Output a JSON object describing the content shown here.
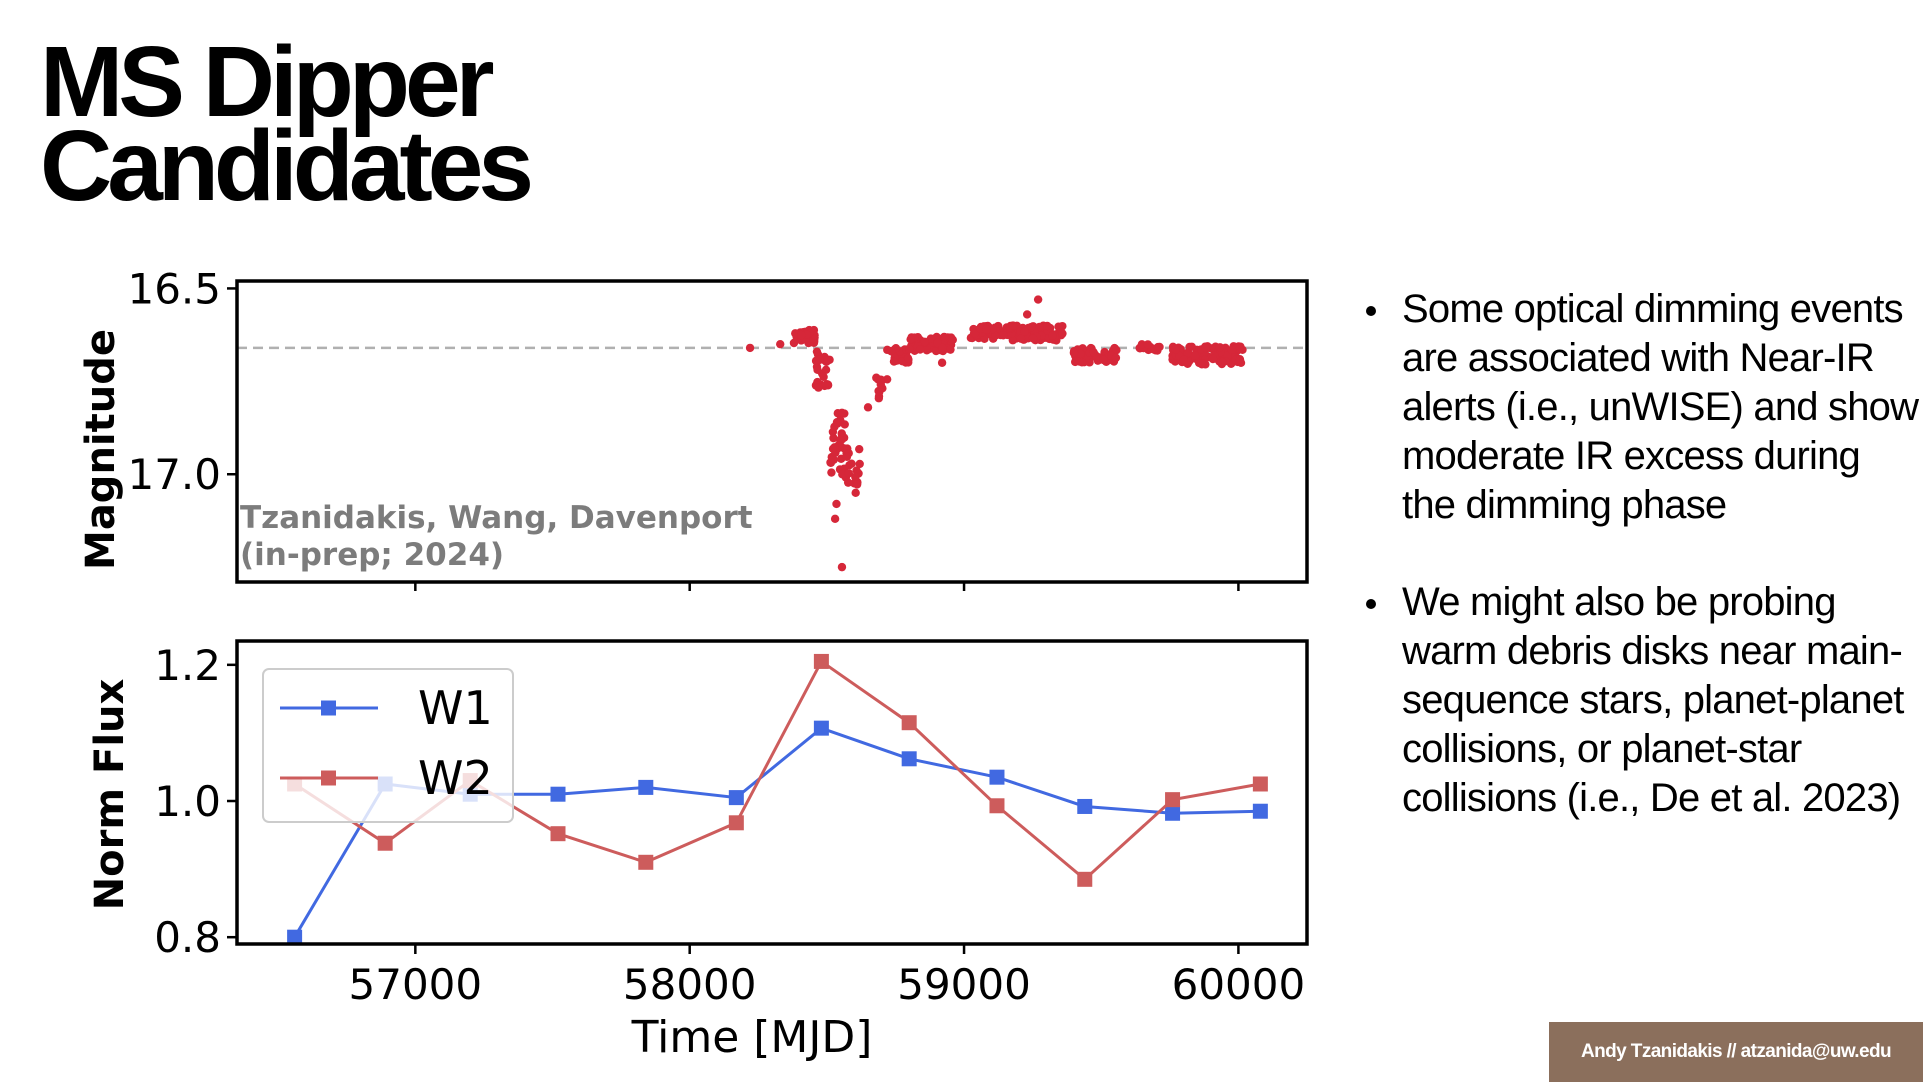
{
  "title": {
    "line1": "MS Dipper",
    "line2": "Candidates"
  },
  "bullets": [
    "Some optical dimming events are associated with Near-IR alerts (i.e., unWISE) and show moderate IR excess during the dimming phase",
    "We might also be probing warm debris disks near main-sequence stars, planet-planet collisions, or planet-star collisions (i.e., De et al.  2023)"
  ],
  "footer": "Andy Tzanidakis // atzanida@uw.edu",
  "colors": {
    "optical": "#d62739",
    "w1": "#4169e1",
    "w2": "#cd5c5c",
    "reference": "#b0b0b0",
    "footer_bg": "#8b6f5c"
  },
  "chart_data": [
    {
      "type": "scatter",
      "title": "",
      "ylabel": "Magnitude",
      "xlabel": "",
      "xlim": [
        56350,
        60250
      ],
      "ylim": [
        17.29,
        16.48
      ],
      "y_inverted": true,
      "yticks": [
        16.5,
        17.0
      ],
      "ytick_labels": [
        "16.5",
        "17.0"
      ],
      "xticks": [
        57000,
        58000,
        59000,
        60000
      ],
      "reference_line": 16.66,
      "annotation": [
        "Tzanidakis, Wang, Davenport",
        "(in-prep; 2024)"
      ],
      "segments": [
        {
          "x0": 58380,
          "x1": 58460,
          "base": 16.63,
          "amp": 0.02,
          "n": 40
        },
        {
          "x0": 58460,
          "x1": 58510,
          "base": 16.72,
          "amp": 0.05,
          "n": 25
        },
        {
          "x0": 58510,
          "x1": 58570,
          "base": 16.92,
          "amp": 0.09,
          "n": 35
        },
        {
          "x0": 58570,
          "x1": 58620,
          "base": 16.98,
          "amp": 0.05,
          "n": 18
        },
        {
          "x0": 58680,
          "x1": 58720,
          "base": 16.77,
          "amp": 0.03,
          "n": 10
        },
        {
          "x0": 58720,
          "x1": 58800,
          "base": 16.68,
          "amp": 0.02,
          "n": 35
        },
        {
          "x0": 58800,
          "x1": 58960,
          "base": 16.65,
          "amp": 0.02,
          "n": 60
        },
        {
          "x0": 59020,
          "x1": 59360,
          "base": 16.62,
          "amp": 0.02,
          "n": 140
        },
        {
          "x0": 59400,
          "x1": 59560,
          "base": 16.68,
          "amp": 0.02,
          "n": 60
        },
        {
          "x0": 59640,
          "x1": 59720,
          "base": 16.66,
          "amp": 0.01,
          "n": 15
        },
        {
          "x0": 59760,
          "x1": 60020,
          "base": 16.68,
          "amp": 0.025,
          "n": 110
        }
      ],
      "points": [
        {
          "x": 58220,
          "y": 16.66
        },
        {
          "x": 58330,
          "y": 16.65
        },
        {
          "x": 58555,
          "y": 17.25
        },
        {
          "x": 58535,
          "y": 17.08
        },
        {
          "x": 58605,
          "y": 17.05
        },
        {
          "x": 58530,
          "y": 17.12
        },
        {
          "x": 59270,
          "y": 16.53
        },
        {
          "x": 58650,
          "y": 16.82
        },
        {
          "x": 58690,
          "y": 16.79
        },
        {
          "x": 58920,
          "y": 16.7
        },
        {
          "x": 59230,
          "y": 16.57
        }
      ]
    },
    {
      "type": "line",
      "title": "",
      "xlabel": "Time [MJD]",
      "ylabel": "Norm Flux",
      "xlim": [
        56350,
        60250
      ],
      "ylim": [
        0.79,
        1.235
      ],
      "yticks": [
        0.8,
        1.0,
        1.2
      ],
      "ytick_labels": [
        "0.8",
        "1.0",
        "1.2"
      ],
      "xticks": [
        57000,
        58000,
        59000,
        60000
      ],
      "xtick_labels": [
        "57000",
        "58000",
        "59000",
        "60000"
      ],
      "legend": "top-left",
      "series": [
        {
          "name": "W1",
          "x": [
            56560,
            56890,
            57200,
            57520,
            57840,
            58170,
            58480,
            58800,
            59120,
            59440,
            59760,
            60080
          ],
          "y": [
            0.8,
            1.025,
            1.01,
            1.01,
            1.02,
            1.005,
            1.107,
            1.062,
            1.035,
            0.992,
            0.982,
            0.985
          ]
        },
        {
          "name": "W2",
          "x": [
            56560,
            56890,
            57200,
            57520,
            57840,
            58170,
            58480,
            58800,
            59120,
            59440,
            59760,
            60080
          ],
          "y": [
            1.025,
            0.938,
            1.03,
            0.952,
            0.91,
            0.968,
            1.205,
            1.115,
            0.993,
            0.885,
            1.002,
            1.025
          ]
        }
      ]
    }
  ]
}
